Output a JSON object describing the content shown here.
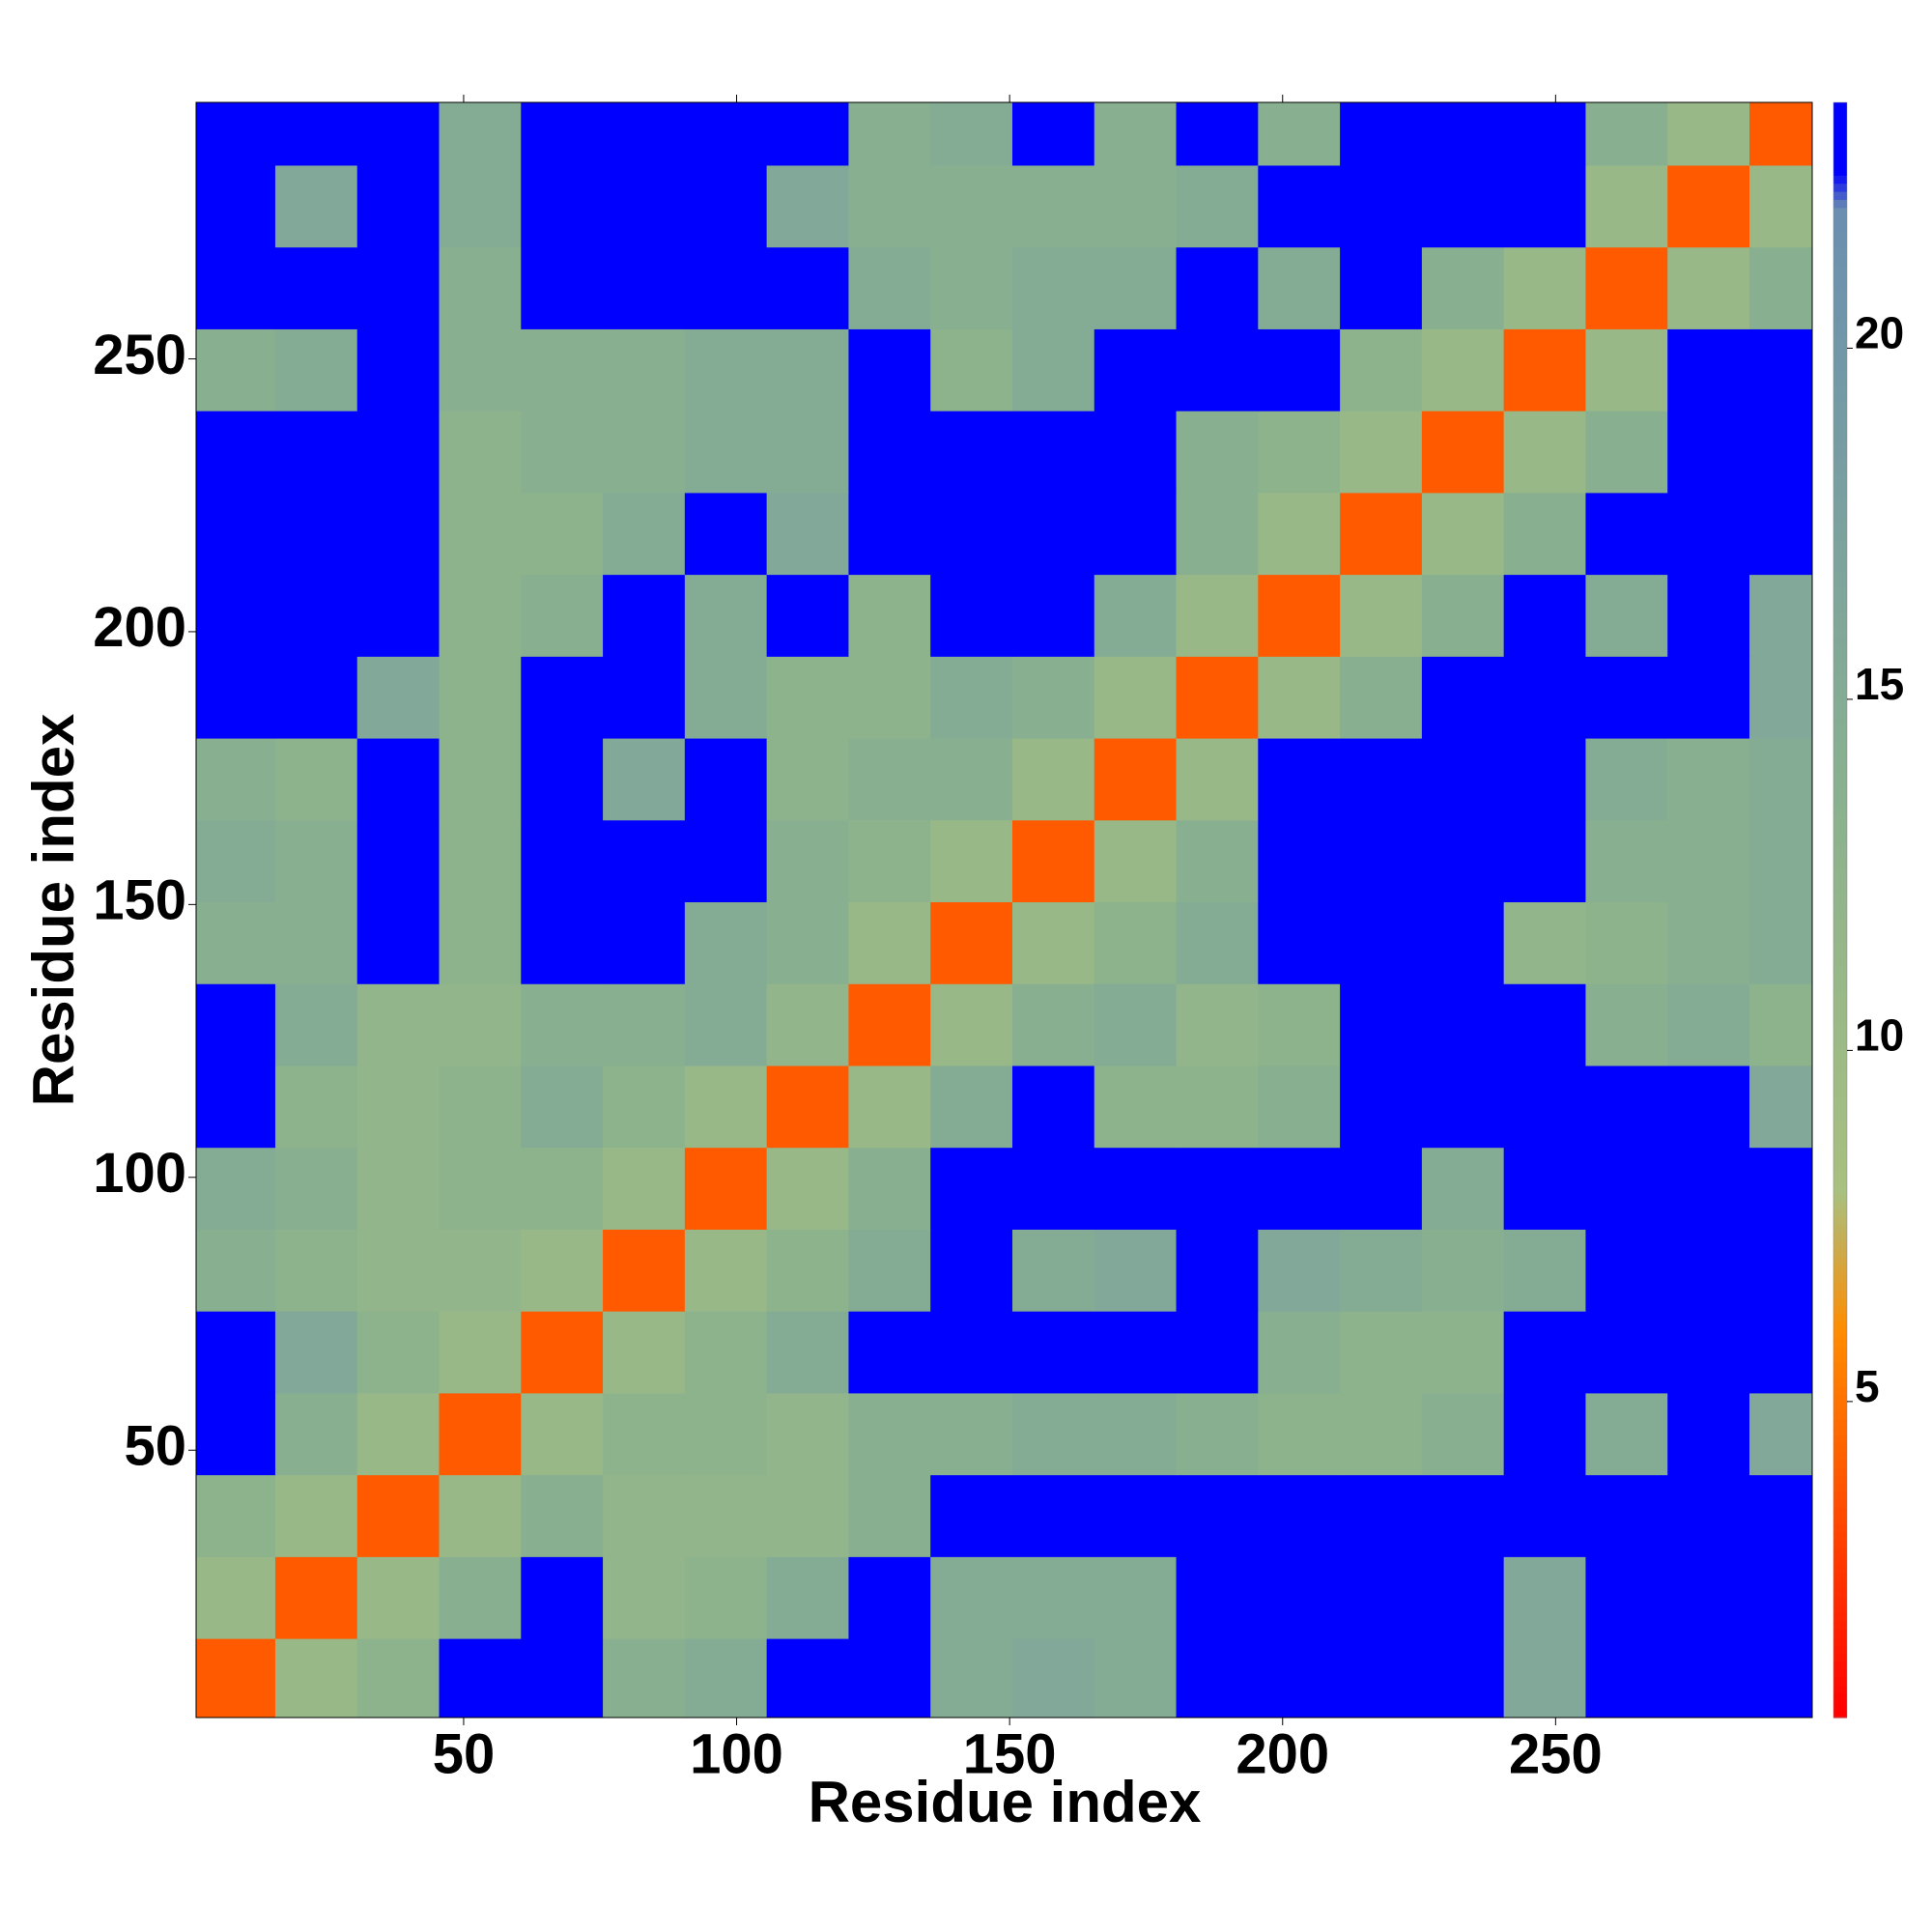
{
  "chart_data": {
    "type": "heatmap",
    "x_label": "Residue index",
    "y_label": "Residue index",
    "x": [
      8,
      23,
      38,
      53,
      68,
      83,
      98,
      113,
      128,
      143,
      158,
      173,
      188,
      203,
      218,
      233,
      248,
      263,
      278,
      293
    ],
    "y": [
      8,
      23,
      38,
      53,
      68,
      83,
      98,
      113,
      128,
      143,
      158,
      173,
      188,
      203,
      218,
      233,
      248,
      263,
      278,
      293
    ],
    "values": [
      [
        4,
        11,
        13,
        24,
        24,
        14,
        15,
        24,
        24,
        15,
        16,
        15,
        24,
        24,
        24,
        24,
        16,
        24,
        24,
        24
      ],
      [
        11,
        4,
        11,
        14,
        24,
        12,
        13,
        15,
        24,
        15,
        15,
        15,
        24,
        24,
        24,
        24,
        16,
        24,
        24,
        24
      ],
      [
        13,
        11,
        4,
        11,
        14,
        12,
        12,
        12,
        14,
        24,
        24,
        24,
        24,
        24,
        24,
        24,
        24,
        24,
        24,
        24
      ],
      [
        24,
        14,
        11,
        4,
        11,
        13,
        13,
        12,
        14,
        14,
        15,
        15,
        14,
        13,
        13,
        14,
        24,
        15,
        24,
        16
      ],
      [
        24,
        16,
        13,
        11,
        4,
        11,
        13,
        15,
        24,
        24,
        24,
        24,
        24,
        14,
        13,
        13,
        24,
        24,
        24,
        24
      ],
      [
        14,
        13,
        12,
        12,
        11,
        4,
        11,
        13,
        15,
        24,
        15,
        16,
        24,
        16,
        15,
        14,
        15,
        24,
        24,
        24
      ],
      [
        15,
        14,
        12,
        13,
        13,
        11,
        4,
        11,
        14,
        24,
        24,
        24,
        24,
        24,
        24,
        15,
        24,
        24,
        24,
        24
      ],
      [
        24,
        13,
        12,
        13,
        15,
        13,
        11,
        4,
        11,
        15,
        24,
        13,
        13,
        14,
        24,
        24,
        24,
        24,
        24,
        16
      ],
      [
        24,
        15,
        12,
        12,
        14,
        14,
        15,
        12,
        4,
        11,
        14,
        15,
        12,
        13,
        24,
        24,
        24,
        14,
        15,
        13
      ],
      [
        14,
        14,
        24,
        13,
        24,
        24,
        15,
        14,
        11,
        4,
        11,
        13,
        15,
        24,
        24,
        24,
        12,
        13,
        14,
        15
      ],
      [
        15,
        14,
        24,
        13,
        24,
        24,
        24,
        14,
        13,
        11,
        4,
        11,
        14,
        24,
        24,
        24,
        24,
        14,
        14,
        15
      ],
      [
        14,
        13,
        24,
        13,
        24,
        16,
        24,
        13,
        14,
        14,
        11,
        4,
        11,
        24,
        24,
        24,
        24,
        15,
        14,
        15
      ],
      [
        24,
        24,
        16,
        13,
        24,
        24,
        15,
        13,
        13,
        15,
        14,
        11,
        4,
        11,
        14,
        24,
        24,
        24,
        24,
        16
      ],
      [
        24,
        24,
        24,
        13,
        14,
        24,
        15,
        24,
        13,
        24,
        24,
        15,
        11,
        4,
        11,
        14,
        24,
        15,
        24,
        16
      ],
      [
        24,
        24,
        24,
        13,
        13,
        15,
        24,
        16,
        24,
        24,
        24,
        24,
        14,
        11,
        4,
        11,
        14,
        24,
        24,
        24
      ],
      [
        24,
        24,
        24,
        13,
        14,
        14,
        15,
        15,
        24,
        24,
        24,
        24,
        14,
        13,
        11,
        4,
        11,
        14,
        24,
        24
      ],
      [
        14,
        15,
        24,
        14,
        14,
        14,
        15,
        15,
        24,
        13,
        15,
        24,
        24,
        24,
        13,
        11,
        4,
        11,
        24,
        24
      ],
      [
        24,
        24,
        24,
        14,
        24,
        24,
        24,
        24,
        15,
        14,
        15,
        15,
        24,
        15,
        24,
        14,
        11,
        4,
        11,
        14
      ],
      [
        24,
        16,
        24,
        15,
        24,
        24,
        24,
        16,
        14,
        14,
        14,
        14,
        15,
        24,
        24,
        24,
        24,
        11,
        4,
        11
      ],
      [
        24,
        24,
        24,
        15,
        24,
        24,
        24,
        24,
        14,
        15,
        24,
        14,
        24,
        14,
        24,
        24,
        24,
        14,
        11,
        4
      ]
    ],
    "xlim": [
      1,
      297
    ],
    "ylim": [
      1,
      297
    ],
    "xticks": [
      50,
      100,
      150,
      200,
      250
    ],
    "yticks": [
      50,
      100,
      150,
      200,
      250
    ],
    "clim": [
      0.5,
      23.5
    ],
    "cticks": [
      5,
      10,
      15,
      20
    ],
    "colorscale": [
      [
        0.5,
        "#ff0000"
      ],
      [
        2.5,
        "#ff3300"
      ],
      [
        4,
        "#ff5a00"
      ],
      [
        6,
        "#ff8c00"
      ],
      [
        8,
        "#a8c080"
      ],
      [
        14,
        "#88b090"
      ],
      [
        22,
        "#6a8fb0"
      ],
      [
        22.5,
        "#0000ff"
      ],
      [
        23.5,
        "#0000ff"
      ]
    ]
  }
}
